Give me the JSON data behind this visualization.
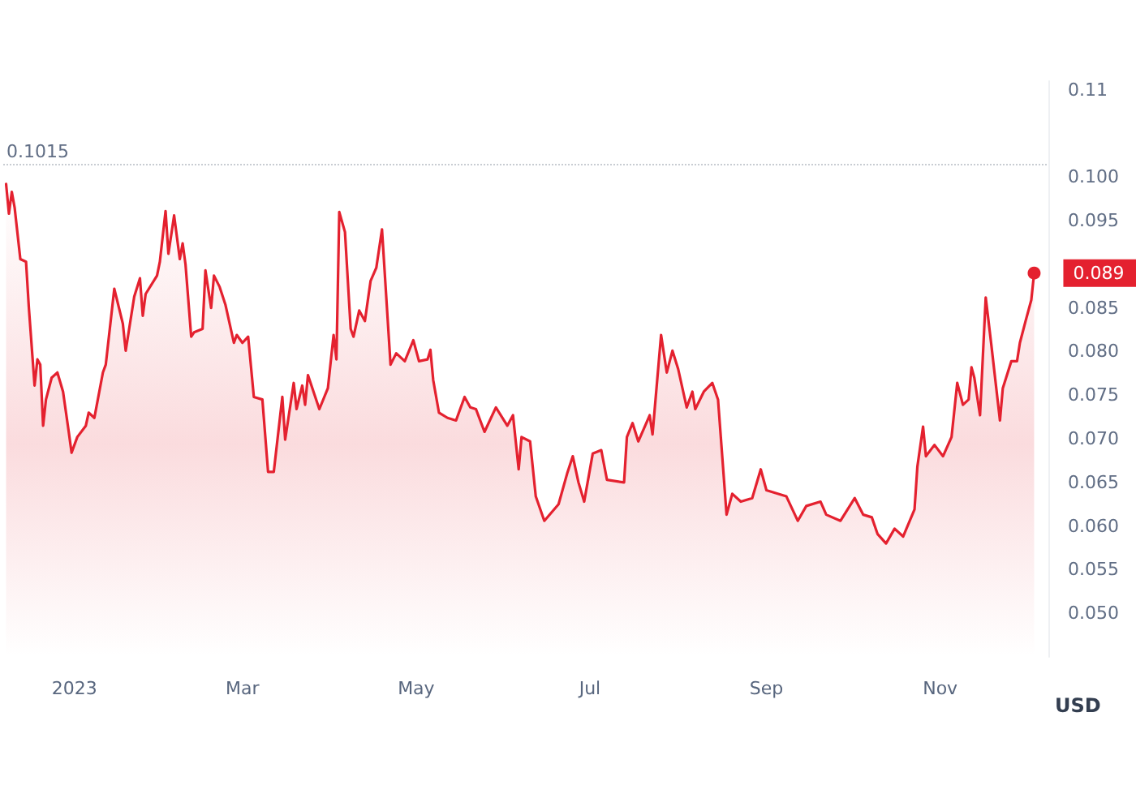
{
  "chart_data": {
    "type": "area",
    "ylabel": "USD",
    "x": [
      "2022-12-08",
      "2022-12-09",
      "2022-12-10",
      "2022-12-11",
      "2022-12-13",
      "2022-12-15",
      "2022-12-16",
      "2022-12-18",
      "2022-12-19",
      "2022-12-20",
      "2022-12-21",
      "2022-12-22",
      "2022-12-24",
      "2022-12-26",
      "2022-12-28",
      "2022-12-30",
      "2022-12-31",
      "2023-01-02",
      "2023-01-05",
      "2023-01-06",
      "2023-01-08",
      "2023-01-11",
      "2023-01-12",
      "2023-01-15",
      "2023-01-18",
      "2023-01-19",
      "2023-01-22",
      "2023-01-24",
      "2023-01-25",
      "2023-01-26",
      "2023-01-30",
      "2023-01-31",
      "2023-02-02",
      "2023-02-03",
      "2023-02-05",
      "2023-02-07",
      "2023-02-08",
      "2023-02-09",
      "2023-02-11",
      "2023-02-12",
      "2023-02-15",
      "2023-02-16",
      "2023-02-18",
      "2023-02-19",
      "2023-02-21",
      "2023-02-23",
      "2023-02-26",
      "2023-02-27",
      "2023-03-01",
      "2023-03-03",
      "2023-03-05",
      "2023-03-08",
      "2023-03-10",
      "2023-03-12",
      "2023-03-15",
      "2023-03-16",
      "2023-03-19",
      "2023-03-20",
      "2023-03-22",
      "2023-03-23",
      "2023-03-24",
      "2023-03-28",
      "2023-03-31",
      "2023-04-02",
      "2023-04-03",
      "2023-04-04",
      "2023-04-06",
      "2023-04-08",
      "2023-04-09",
      "2023-04-11",
      "2023-04-13",
      "2023-04-15",
      "2023-04-17",
      "2023-04-19",
      "2023-04-22",
      "2023-04-24",
      "2023-04-27",
      "2023-04-30",
      "2023-05-02",
      "2023-05-05",
      "2023-05-06",
      "2023-05-07",
      "2023-05-09",
      "2023-05-12",
      "2023-05-15",
      "2023-05-18",
      "2023-05-20",
      "2023-05-22",
      "2023-05-25",
      "2023-05-29",
      "2023-06-02",
      "2023-06-04",
      "2023-06-06",
      "2023-06-07",
      "2023-06-10",
      "2023-06-12",
      "2023-06-15",
      "2023-06-20",
      "2023-06-23",
      "2023-06-25",
      "2023-06-27",
      "2023-06-29",
      "2023-07-02",
      "2023-07-05",
      "2023-07-07",
      "2023-07-13",
      "2023-07-14",
      "2023-07-16",
      "2023-07-18",
      "2023-07-22",
      "2023-07-23",
      "2023-07-26",
      "2023-07-28",
      "2023-07-30",
      "2023-08-01",
      "2023-08-04",
      "2023-08-06",
      "2023-08-07",
      "2023-08-10",
      "2023-08-13",
      "2023-08-15",
      "2023-08-18",
      "2023-08-20",
      "2023-08-23",
      "2023-08-27",
      "2023-08-30",
      "2023-09-01",
      "2023-09-08",
      "2023-09-12",
      "2023-09-15",
      "2023-09-20",
      "2023-09-22",
      "2023-09-27",
      "2023-10-02",
      "2023-10-05",
      "2023-10-08",
      "2023-10-10",
      "2023-10-13",
      "2023-10-16",
      "2023-10-19",
      "2023-10-23",
      "2023-10-24",
      "2023-10-26",
      "2023-10-27",
      "2023-10-30",
      "2023-11-02",
      "2023-11-05",
      "2023-11-07",
      "2023-11-09",
      "2023-11-11",
      "2023-11-12",
      "2023-11-13",
      "2023-11-15",
      "2023-11-17",
      "2023-11-19",
      "2023-11-22",
      "2023-11-23",
      "2023-11-26",
      "2023-11-28",
      "2023-11-29",
      "2023-12-01",
      "2023-12-03",
      "2023-12-04"
    ],
    "series": [
      {
        "color": "#e4212f",
        "values": [
          0.0992,
          0.0958,
          0.0983,
          0.0965,
          0.0906,
          0.0903,
          0.085,
          0.0761,
          0.0791,
          0.0785,
          0.0715,
          0.0745,
          0.077,
          0.0776,
          0.0754,
          0.0708,
          0.0684,
          0.0702,
          0.0715,
          0.073,
          0.0724,
          0.0776,
          0.0785,
          0.0872,
          0.0832,
          0.0801,
          0.0863,
          0.0884,
          0.0841,
          0.0866,
          0.0887,
          0.0903,
          0.0961,
          0.0912,
          0.0956,
          0.0906,
          0.0924,
          0.09,
          0.0817,
          0.0822,
          0.0826,
          0.0893,
          0.085,
          0.0887,
          0.0874,
          0.0854,
          0.081,
          0.0819,
          0.081,
          0.0817,
          0.0748,
          0.0745,
          0.0662,
          0.0662,
          0.0748,
          0.0699,
          0.0764,
          0.0734,
          0.0761,
          0.0739,
          0.0773,
          0.0734,
          0.0758,
          0.0819,
          0.0791,
          0.096,
          0.0937,
          0.0826,
          0.0817,
          0.0847,
          0.0835,
          0.0881,
          0.0896,
          0.094,
          0.0785,
          0.0798,
          0.0789,
          0.0813,
          0.0789,
          0.0791,
          0.0802,
          0.0767,
          0.073,
          0.0724,
          0.0721,
          0.0748,
          0.0736,
          0.0734,
          0.0708,
          0.0736,
          0.0715,
          0.0727,
          0.0665,
          0.0702,
          0.0697,
          0.0634,
          0.0606,
          0.0625,
          0.066,
          0.068,
          0.065,
          0.0628,
          0.0683,
          0.0687,
          0.0653,
          0.065,
          0.0702,
          0.0718,
          0.0697,
          0.0727,
          0.0705,
          0.0819,
          0.0776,
          0.0801,
          0.078,
          0.0736,
          0.0754,
          0.0734,
          0.0754,
          0.0764,
          0.0745,
          0.0613,
          0.0637,
          0.0628,
          0.0632,
          0.0665,
          0.0641,
          0.0634,
          0.0606,
          0.0623,
          0.0628,
          0.0613,
          0.0606,
          0.0632,
          0.0613,
          0.061,
          0.0591,
          0.058,
          0.0597,
          0.0588,
          0.0619,
          0.0668,
          0.0714,
          0.068,
          0.0693,
          0.068,
          0.0702,
          0.0764,
          0.0739,
          0.0745,
          0.0782,
          0.077,
          0.0727,
          0.0862,
          0.0807,
          0.0721,
          0.0758,
          0.0789,
          0.0789,
          0.081,
          0.0835,
          0.0859,
          0.089
        ]
      }
    ],
    "xlim": [
      "2022-12-07",
      "2023-12-09"
    ],
    "xticks": [
      {
        "value": "2023-01-01",
        "label": "2023"
      },
      {
        "value": "2023-03-01",
        "label": "Mar"
      },
      {
        "value": "2023-05-01",
        "label": "May"
      },
      {
        "value": "2023-07-01",
        "label": "Jul"
      },
      {
        "value": "2023-09-01",
        "label": "Sep"
      },
      {
        "value": "2023-11-01",
        "label": "Nov"
      }
    ],
    "ylim": [
      0.045,
      0.111
    ],
    "yticks": [
      {
        "value": 0.05,
        "label": "0.050"
      },
      {
        "value": 0.055,
        "label": "0.055"
      },
      {
        "value": 0.06,
        "label": "0.060"
      },
      {
        "value": 0.065,
        "label": "0.065"
      },
      {
        "value": 0.07,
        "label": "0.070"
      },
      {
        "value": 0.075,
        "label": "0.075"
      },
      {
        "value": 0.08,
        "label": "0.080"
      },
      {
        "value": 0.085,
        "label": "0.085"
      },
      {
        "value": 0.095,
        "label": "0.095"
      },
      {
        "value": 0.1,
        "label": "0.100"
      },
      {
        "value": 0.11,
        "label": "0.11"
      }
    ],
    "ref_lines": [
      {
        "axis": "y",
        "value": 0.1015,
        "label": "0.1015",
        "line_style": "dotted"
      }
    ],
    "annotations": [
      {
        "text": "0.089",
        "x": "2023-12-04",
        "y": 0.089
      }
    ],
    "grid": false,
    "marker": "none",
    "line_style": "solid"
  }
}
